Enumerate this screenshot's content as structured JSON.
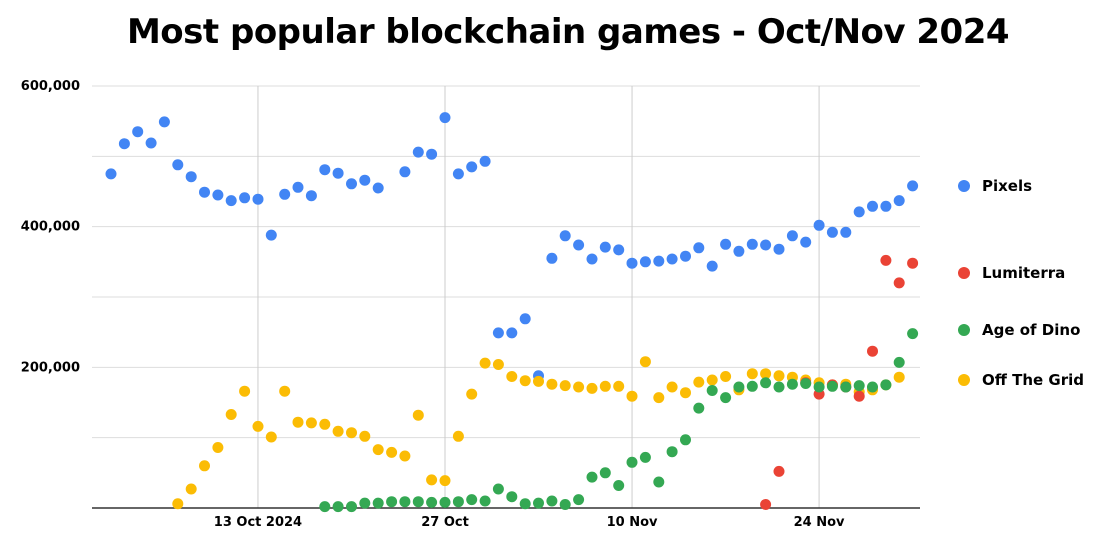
{
  "chart_data": {
    "type": "scatter",
    "title": "Most popular blockchain games - Oct/Nov 2024",
    "xlabel": "",
    "ylabel": "",
    "ylim": [
      0,
      600000
    ],
    "y_ticks": [
      "600,000",
      "400,000",
      "200,000"
    ],
    "y_tick_values": [
      600000,
      400000,
      200000
    ],
    "x_ticks": [
      "13 Oct 2024",
      "27 Oct",
      "10 Nov",
      "24 Nov"
    ],
    "x_tick_index": [
      11,
      25,
      39,
      53
    ],
    "grid": true,
    "legend_position": "right",
    "x_start": "2 Oct 2024",
    "x_end": "1 Dec 2024",
    "x_count": 61,
    "series": [
      {
        "name": "Pixels",
        "color": "#4285F4",
        "values": [
          475000,
          518000,
          535000,
          519000,
          549000,
          488000,
          471000,
          449000,
          445000,
          437000,
          441000,
          439000,
          388000,
          446000,
          456000,
          444000,
          481000,
          476000,
          461000,
          466000,
          455000,
          null,
          478000,
          506000,
          503000,
          555000,
          475000,
          485000,
          493000,
          249000,
          249000,
          269000,
          188000,
          355000,
          387000,
          374000,
          354000,
          371000,
          367000,
          348000,
          350000,
          351000,
          354000,
          358000,
          370000,
          344000,
          375000,
          365000,
          375000,
          374000,
          368000,
          387000,
          378000,
          402000,
          392000,
          392000,
          421000,
          429000,
          429000,
          437000,
          458000
        ]
      },
      {
        "name": "Lumiterra",
        "color": "#EA4335",
        "values": [
          null,
          null,
          null,
          null,
          null,
          null,
          null,
          null,
          null,
          null,
          null,
          null,
          null,
          null,
          null,
          null,
          null,
          null,
          null,
          null,
          null,
          null,
          null,
          null,
          null,
          null,
          null,
          null,
          null,
          null,
          null,
          null,
          null,
          null,
          null,
          null,
          null,
          null,
          null,
          null,
          null,
          null,
          null,
          null,
          null,
          null,
          null,
          null,
          null,
          5000,
          52000,
          null,
          178000,
          162000,
          175000,
          172000,
          159000,
          223000,
          352000,
          320000,
          348000
        ]
      },
      {
        "name": "Age of Dino",
        "color": "#34A853",
        "values": [
          null,
          null,
          null,
          null,
          null,
          null,
          null,
          null,
          null,
          null,
          null,
          null,
          null,
          null,
          null,
          null,
          2000,
          2000,
          2000,
          7000,
          7000,
          9000,
          9000,
          9000,
          8000,
          8000,
          9000,
          12000,
          10000,
          27000,
          16000,
          6000,
          7000,
          10000,
          5000,
          12000,
          44000,
          50000,
          32000,
          65000,
          72000,
          37000,
          80000,
          97000,
          142000,
          167000,
          157000,
          172000,
          173000,
          178000,
          172000,
          176000,
          177000,
          172000,
          173000,
          172000,
          174000,
          172000,
          175000,
          207000,
          248000
        ]
      },
      {
        "name": "Off The Grid",
        "color": "#FBBC04",
        "values": [
          null,
          null,
          null,
          null,
          null,
          6000,
          27000,
          60000,
          86000,
          133000,
          166000,
          116000,
          101000,
          166000,
          122000,
          121000,
          119000,
          109000,
          107000,
          102000,
          83000,
          79000,
          74000,
          132000,
          40000,
          39000,
          102000,
          162000,
          206000,
          204000,
          187000,
          181000,
          180000,
          176000,
          174000,
          172000,
          170000,
          173000,
          173000,
          159000,
          208000,
          157000,
          172000,
          164000,
          179000,
          182000,
          187000,
          168000,
          191000,
          191000,
          188000,
          186000,
          182000,
          178000,
          175000,
          176000,
          165000,
          168000,
          175000,
          186000,
          null
        ]
      }
    ]
  },
  "legend": {
    "items": [
      {
        "label": "Pixels",
        "color": "#4285F4"
      },
      {
        "label": "Lumiterra",
        "color": "#EA4335"
      },
      {
        "label": "Age of Dino",
        "color": "#34A853"
      },
      {
        "label": "Off The Grid",
        "color": "#FBBC04"
      }
    ]
  }
}
